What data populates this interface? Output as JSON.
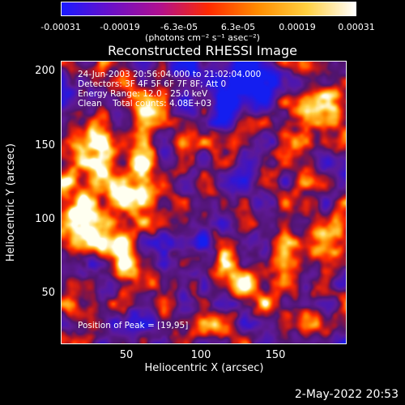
{
  "colorbar": {
    "ticks": [
      "-0.00031",
      "-0.00019",
      "-6.3e-05",
      "6.3e-05",
      "0.00019",
      "0.00031"
    ],
    "units": "(photons cm⁻² s⁻¹ asec⁻²)",
    "colors": [
      "#1a1aff",
      "#6a10c8",
      "#b01090",
      "#ff2a00",
      "#ff8c00",
      "#ffd040",
      "#ffffff"
    ]
  },
  "title": "Reconstructed RHESSI Image",
  "info": {
    "line1": "24-Jun-2003 20:56:04.000 to 21:02:04.000",
    "line2": "Detectors: 3F 4F 5F 6F 7F 8F; Att 0",
    "line3": "Energy Range: 12.0 - 25.0 keV",
    "line4": "Clean    Total counts: 4.08E+03"
  },
  "peak_label": "Position of Peak = [19,95]",
  "axes": {
    "xlabel": "Heliocentric X (arcsec)",
    "ylabel": "Heliocentric Y (arcsec)",
    "xticks": [
      "50",
      "100",
      "150"
    ],
    "yticks": [
      "200",
      "150",
      "100",
      "50"
    ]
  },
  "timestamp": "2-May-2022 20:53"
}
